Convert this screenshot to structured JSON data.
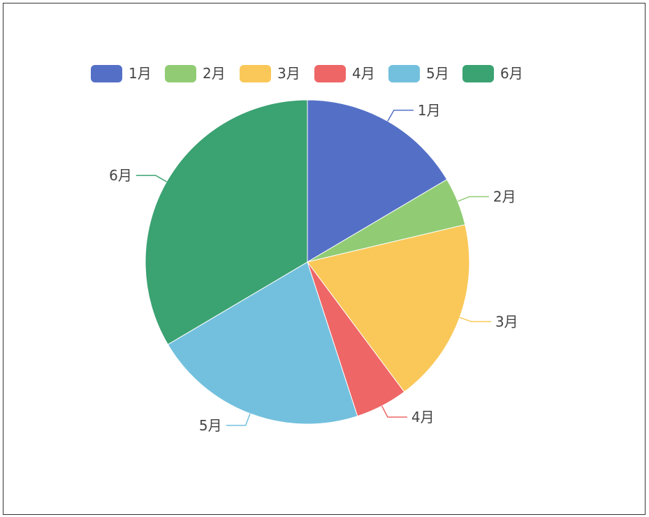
{
  "chart_data": {
    "type": "pie",
    "categories": [
      "1月",
      "2月",
      "3月",
      "4月",
      "5月",
      "6月"
    ],
    "values": [
      16.5,
      4.8,
      18.5,
      5.2,
      21.5,
      33.5
    ],
    "colors": [
      "#5470c6",
      "#91cc75",
      "#fac858",
      "#ee6666",
      "#73c0de",
      "#3ba272"
    ],
    "legend": {
      "entries": [
        "1月",
        "2月",
        "3月",
        "4月",
        "5月",
        "6月"
      ],
      "placement": "top-center"
    },
    "labels": [
      "1月",
      "2月",
      "3月",
      "4月",
      "5月",
      "6月"
    ],
    "start_angle": "12 o'clock",
    "direction": "clockwise"
  }
}
